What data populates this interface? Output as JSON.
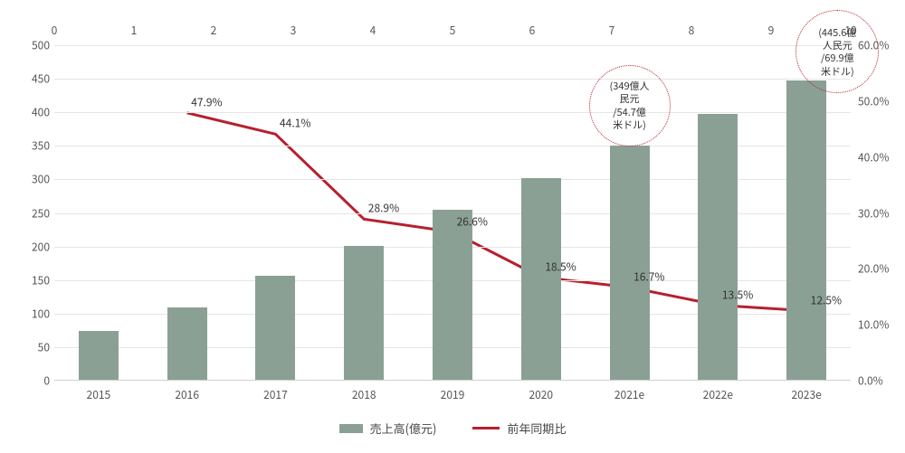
{
  "chart": {
    "type": "bar+line",
    "background_color": "#ffffff",
    "grid_color": "#e5e5e5",
    "axis_color": "#d0d0d0",
    "text_color": "#555555",
    "label_fontsize": 12,
    "bar_color": "#8ba094",
    "line_color": "#b7202e",
    "callout_border_color": "#b7202e",
    "bar_width_ratio": 0.45,
    "categories": [
      "2015",
      "2016",
      "2017",
      "2018",
      "2019",
      "2020",
      "2021e",
      "2022e",
      "2023e"
    ],
    "bar_values": [
      73,
      108,
      155,
      200,
      253,
      300,
      349,
      396,
      445.6
    ],
    "line_values": [
      null,
      47.9,
      44.1,
      28.9,
      26.6,
      18.5,
      16.7,
      13.5,
      12.5
    ],
    "line_labels": [
      "",
      "47.9%",
      "44.1%",
      "28.9%",
      "26.6%",
      "18.5%",
      "16.7%",
      "13.5%",
      "12.5%"
    ],
    "y_left": {
      "min": 0,
      "max": 500,
      "step": 50,
      "label_suffix": ""
    },
    "y_right": {
      "min": 0,
      "max": 60,
      "step": 10,
      "label_suffix": ".0%"
    },
    "top_axis": {
      "min": 0,
      "max": 10,
      "step": 1
    },
    "legend": {
      "bar_label": "売上高(億元)",
      "line_label": "前年同期比"
    },
    "callouts": [
      {
        "text": "(349億人\n民元\n/54.7億\n米ドル)",
        "cx_category_index": 6,
        "cy_percent_top": 0.18,
        "diameter": 90
      },
      {
        "text": "(445.6億\n人民元\n/69.9億\n米ドル)",
        "cx_category_index": 8,
        "cx_offset": 0.35,
        "cy_percent_top": 0.02,
        "diameter": 92
      }
    ]
  }
}
